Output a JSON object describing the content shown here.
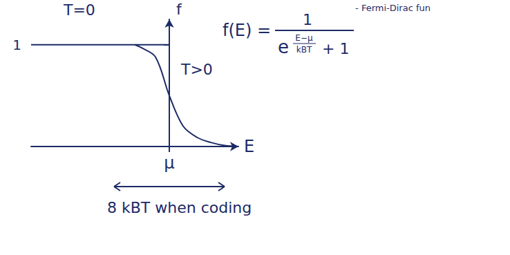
{
  "chart_data": {
    "type": "line",
    "title": "- Fermi-Dirac fun",
    "x_label": "E",
    "y_label": "f",
    "xlim": [
      -10,
      5
    ],
    "xticks": [
      {
        "value": 0,
        "label": "μ"
      }
    ],
    "ylim": [
      0,
      1.25
    ],
    "yticks": [
      1
    ],
    "grid": false,
    "color": "#1c2a66",
    "series": [
      {
        "name": "T=0",
        "x": [
          -10,
          0,
          0
        ],
        "values": [
          1,
          1,
          0
        ],
        "line_style": "solid",
        "marker": "none"
      },
      {
        "name": "T>0",
        "x": [
          -2.5,
          -2,
          -1,
          0,
          1,
          2,
          3,
          4,
          5
        ],
        "values": [
          1,
          0.97,
          0.88,
          0.5,
          0.2,
          0.09,
          0.04,
          0.01,
          0
        ],
        "line_style": "solid",
        "marker": "none"
      }
    ],
    "annotations": {
      "formula_lhs": "f(E) =",
      "formula_numerator": "1",
      "formula_base": "e",
      "formula_exp_numerator": "E−μ",
      "formula_exp_denominator": "kBT",
      "formula_plus": "+ 1",
      "span": {
        "text": "8 kBT when coding",
        "width": 8
      }
    }
  }
}
